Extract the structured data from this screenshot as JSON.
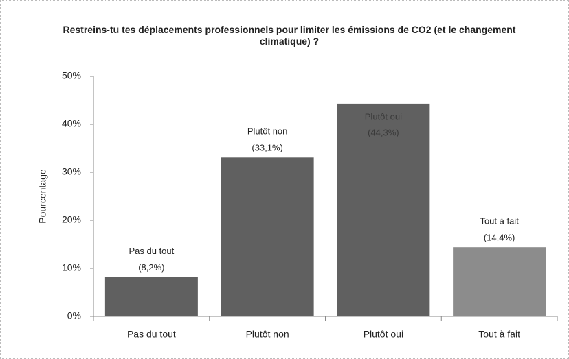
{
  "chart_data": {
    "type": "bar",
    "title": "Restreins-tu tes déplacements professionnels pour limiter les émissions de CO2 (et le changement climatique) ?",
    "ylabel": "Pourcentage",
    "categories": [
      "Pas du tout",
      "Plutôt non",
      "Plutôt oui",
      "Tout à fait"
    ],
    "values": [
      8.2,
      33.1,
      44.3,
      14.4
    ],
    "value_labels": [
      "(8,2%)",
      "(33,1%)",
      "(44,3%)",
      "(14,4%)"
    ],
    "colors": [
      "#606060",
      "#606060",
      "#606060",
      "#8c8c8c"
    ],
    "ylim": [
      0,
      50
    ],
    "yticks": [
      {
        "value": 0,
        "label": "0%"
      },
      {
        "value": 10,
        "label": "10%"
      },
      {
        "value": 20,
        "label": "20%"
      },
      {
        "value": 30,
        "label": "30%"
      },
      {
        "value": 40,
        "label": "40%"
      },
      {
        "value": 50,
        "label": "50%"
      }
    ]
  }
}
